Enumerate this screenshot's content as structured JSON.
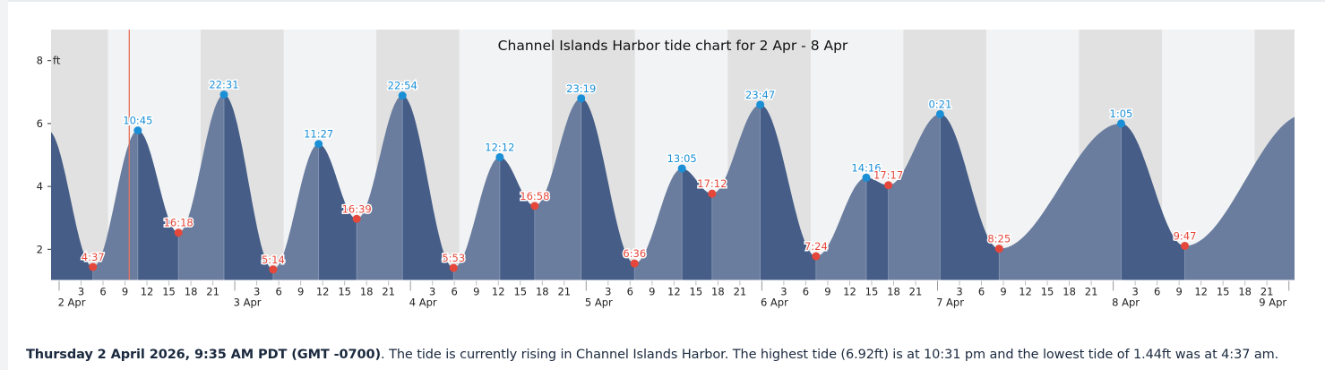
{
  "summary": {
    "datetime": "Thursday 2 April 2026, 9:35 AM PDT (GMT -0700)",
    "text": ". The tide is currently rising in Channel Islands Harbor. The highest tide (6.92ft) is at 10:31 pm and the lowest tide of 1.44ft was at 4:37 am."
  },
  "chart_data": {
    "type": "area",
    "title": "Channel Islands Harbor tide chart for 2 Apr - 8 Apr",
    "ylabel": "ft",
    "ylim": [
      1.03,
      9
    ],
    "yticks": [
      2,
      4,
      6,
      8
    ],
    "xrange": [
      "2 Apr 0:00 (approx. -1h)",
      "9 Apr 0:00 (approx. +1h)"
    ],
    "x_tick_hours": [
      3,
      6,
      9,
      12,
      15,
      18,
      21
    ],
    "day_labels": [
      "2 Apr",
      "3 Apr",
      "4 Apr",
      "5 Apr",
      "6 Apr",
      "7 Apr",
      "8 Apr",
      "9 Apr"
    ],
    "start_height": 5.23,
    "end_height": 5.94,
    "current_time": {
      "day": 0,
      "time": "9:35"
    },
    "extremes": [
      {
        "day": 0,
        "time": "4:37",
        "type": "low",
        "height": 1.44
      },
      {
        "day": 0,
        "time": "10:45",
        "type": "high",
        "height": 5.78
      },
      {
        "day": 0,
        "time": "16:18",
        "type": "low",
        "height": 2.53
      },
      {
        "day": 0,
        "time": "22:31",
        "type": "high",
        "height": 6.92
      },
      {
        "day": 1,
        "time": "5:14",
        "type": "low",
        "height": 1.36
      },
      {
        "day": 1,
        "time": "11:27",
        "type": "high",
        "height": 5.35
      },
      {
        "day": 1,
        "time": "16:39",
        "type": "low",
        "height": 2.97
      },
      {
        "day": 1,
        "time": "22:54",
        "type": "high",
        "height": 6.89
      },
      {
        "day": 2,
        "time": "5:53",
        "type": "low",
        "height": 1.41
      },
      {
        "day": 2,
        "time": "12:12",
        "type": "high",
        "height": 4.93
      },
      {
        "day": 2,
        "time": "16:58",
        "type": "low",
        "height": 3.38
      },
      {
        "day": 2,
        "time": "23:19",
        "type": "high",
        "height": 6.8
      },
      {
        "day": 3,
        "time": "6:36",
        "type": "low",
        "height": 1.55
      },
      {
        "day": 3,
        "time": "13:05",
        "type": "high",
        "height": 4.57
      },
      {
        "day": 3,
        "time": "17:12",
        "type": "low",
        "height": 3.77
      },
      {
        "day": 3,
        "time": "23:47",
        "type": "high",
        "height": 6.6
      },
      {
        "day": 4,
        "time": "7:24",
        "type": "low",
        "height": 1.78
      },
      {
        "day": 4,
        "time": "14:16",
        "type": "high",
        "height": 4.28
      },
      {
        "day": 4,
        "time": "17:17",
        "type": "low",
        "height": 4.04
      },
      {
        "day": 5,
        "time": "0:21",
        "type": "high",
        "height": 6.3
      },
      {
        "day": 5,
        "time": "8:25",
        "type": "low",
        "height": 2.02
      },
      {
        "day": 6,
        "time": "1:05",
        "type": "high",
        "height": 6.0
      },
      {
        "day": 6,
        "time": "9:47",
        "type": "low",
        "height": 2.11
      }
    ],
    "night_shading": {
      "sunrise": "6:40",
      "sunset": "19:20"
    },
    "colors": {
      "rising": "#6a7d9e",
      "falling": "#455d87",
      "high": "#1a8fd6",
      "low": "#e5473a",
      "night": "#e1e1e1",
      "day": "#f2f3f5",
      "now_line": "#e5735f"
    },
    "grid": false
  }
}
